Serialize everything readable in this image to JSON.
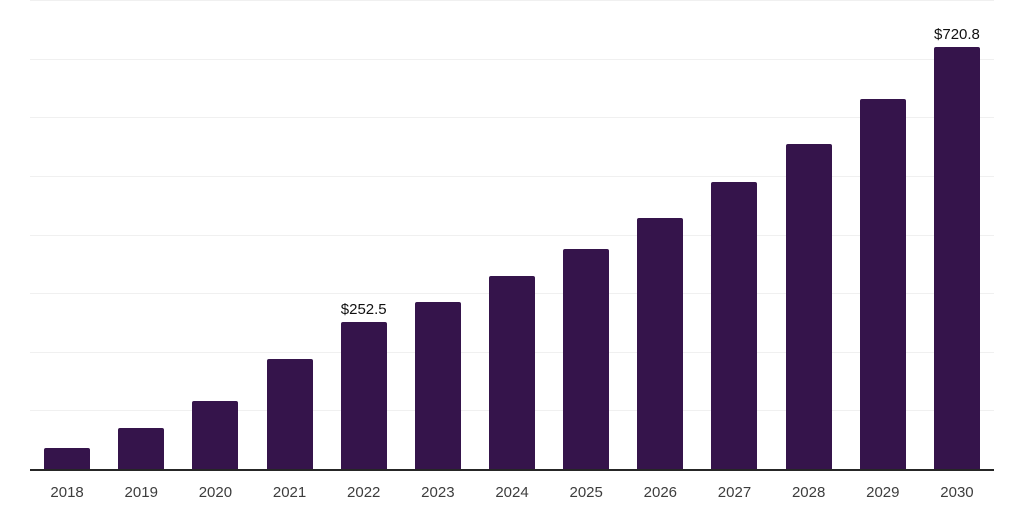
{
  "chart": {
    "background_color": "#ffffff",
    "bar_color": "#35144b",
    "grid_color": "#f0f0f0",
    "axis_color": "#262626",
    "tick_label_color": "#3d3d3d",
    "data_label_color": "#111111"
  },
  "chart_data": {
    "type": "bar",
    "categories": [
      "2018",
      "2019",
      "2020",
      "2021",
      "2022",
      "2023",
      "2024",
      "2025",
      "2026",
      "2027",
      "2028",
      "2029",
      "2030"
    ],
    "values": [
      36.8,
      71.6,
      118.1,
      189.2,
      252.5,
      287.4,
      331.2,
      376.7,
      429.6,
      491.5,
      556.8,
      633.5,
      720.8
    ],
    "data_labels": [
      "",
      "",
      "",
      "",
      "$252.5",
      "",
      "",
      "",
      "",
      "",
      "",
      "",
      "$720.8"
    ],
    "labeled_values": {
      "2022": "$252.5",
      "2030": "$720.8"
    },
    "title": "",
    "xlabel": "",
    "ylabel": "",
    "ylim": [
      0,
      800
    ],
    "grid_step": 100,
    "grid": "horizontal",
    "legend": "none",
    "y_axis_ticks_visible": false
  }
}
